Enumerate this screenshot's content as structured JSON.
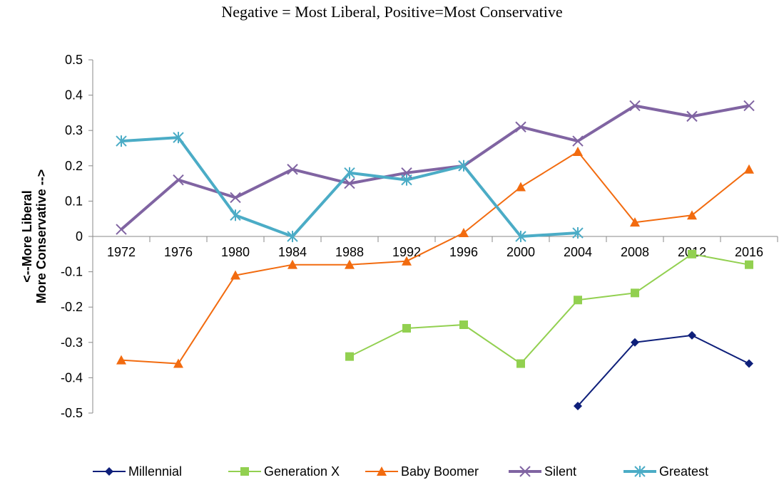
{
  "subtitle": "Negative = Most Liberal, Positive=Most Conservative",
  "chart_data": {
    "type": "line",
    "ylabel_line1": "<--More Liberal",
    "ylabel_line2": "More Conservative -->",
    "ylim": [
      -0.5,
      0.5
    ],
    "yticks": [
      "0.5",
      "0.4",
      "0.3",
      "0.2",
      "0.1",
      "0",
      "-0.1",
      "-0.2",
      "-0.3",
      "-0.4",
      "-0.5"
    ],
    "categories": [
      "1972",
      "1976",
      "1980",
      "1984",
      "1988",
      "1992",
      "1996",
      "2000",
      "2004",
      "2008",
      "2012",
      "2016"
    ],
    "legend_position": "bottom",
    "series": [
      {
        "name": "Millennial",
        "color": "#0e1f7a",
        "marker": "diamond",
        "values": [
          null,
          null,
          null,
          null,
          null,
          null,
          null,
          null,
          -0.48,
          -0.3,
          -0.28,
          -0.36
        ]
      },
      {
        "name": "Generation X",
        "color": "#92d050",
        "marker": "square",
        "values": [
          null,
          null,
          null,
          null,
          -0.34,
          -0.26,
          -0.25,
          -0.36,
          -0.18,
          -0.16,
          -0.05,
          -0.08
        ]
      },
      {
        "name": "Baby Boomer",
        "color": "#f26b0f",
        "marker": "triangle",
        "values": [
          -0.35,
          -0.36,
          -0.11,
          -0.08,
          -0.08,
          -0.07,
          0.01,
          0.14,
          0.24,
          0.04,
          0.06,
          0.19
        ]
      },
      {
        "name": "Silent",
        "color": "#8064a2",
        "marker": "x",
        "values": [
          0.02,
          0.16,
          0.11,
          0.19,
          0.15,
          0.18,
          0.2,
          0.31,
          0.27,
          0.37,
          0.34,
          0.37
        ]
      },
      {
        "name": "Greatest",
        "color": "#4bacc6",
        "marker": "asterisk",
        "values": [
          0.27,
          0.28,
          0.06,
          0.0,
          0.18,
          0.16,
          0.2,
          0.0,
          0.01,
          null,
          null,
          null
        ]
      }
    ]
  }
}
